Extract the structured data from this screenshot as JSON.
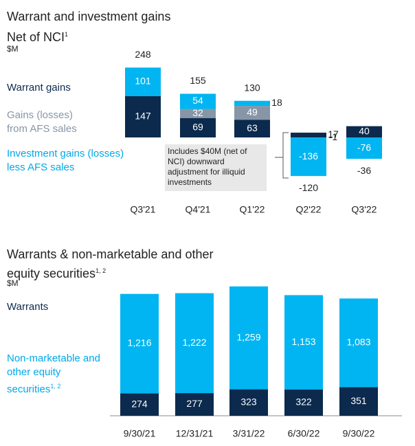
{
  "chart_data": [
    {
      "type": "bar",
      "stacked": true,
      "title": "Warrant and investment gains",
      "subtitle": "Net of NCI",
      "subtitle_sup": "1",
      "unit": "$M",
      "categories": [
        "Q3'21",
        "Q4'21",
        "Q1'22",
        "Q2'22",
        "Q3'22"
      ],
      "series": [
        {
          "name": "Warrant gains",
          "color": "#0b2a4d",
          "values": [
            147,
            69,
            63,
            17,
            40
          ]
        },
        {
          "name": "Gains (losses) from AFS sales",
          "color": "#8796a6",
          "values": [
            null,
            32,
            49,
            -1,
            null
          ]
        },
        {
          "name": "Investment gains (losses) less AFS sales",
          "color": "#00b5f1",
          "values": [
            101,
            54,
            18,
            -136,
            -76
          ]
        }
      ],
      "totals": [
        248,
        155,
        130,
        -120,
        -36
      ],
      "annotation": "Includes $40M (net of NCI) downward adjustment for illiquid investments"
    },
    {
      "type": "bar",
      "stacked": true,
      "title": "Warrants & non-marketable and other equity securities",
      "title_sup": "1, 2",
      "unit": "$M",
      "categories": [
        "9/30/21",
        "12/31/21",
        "3/31/22",
        "6/30/22",
        "9/30/22"
      ],
      "series": [
        {
          "name": "Warrants",
          "color": "#0b2a4d",
          "values": [
            274,
            277,
            323,
            322,
            351
          ]
        },
        {
          "name": "Non-marketable and other equity securities",
          "name_sup": "1, 2",
          "color": "#00b5f1",
          "values": [
            1216,
            1222,
            1259,
            1153,
            1083
          ],
          "value_labels": [
            "1,216",
            "1,222",
            "1,259",
            "1,153",
            "1,083"
          ]
        }
      ]
    }
  ]
}
